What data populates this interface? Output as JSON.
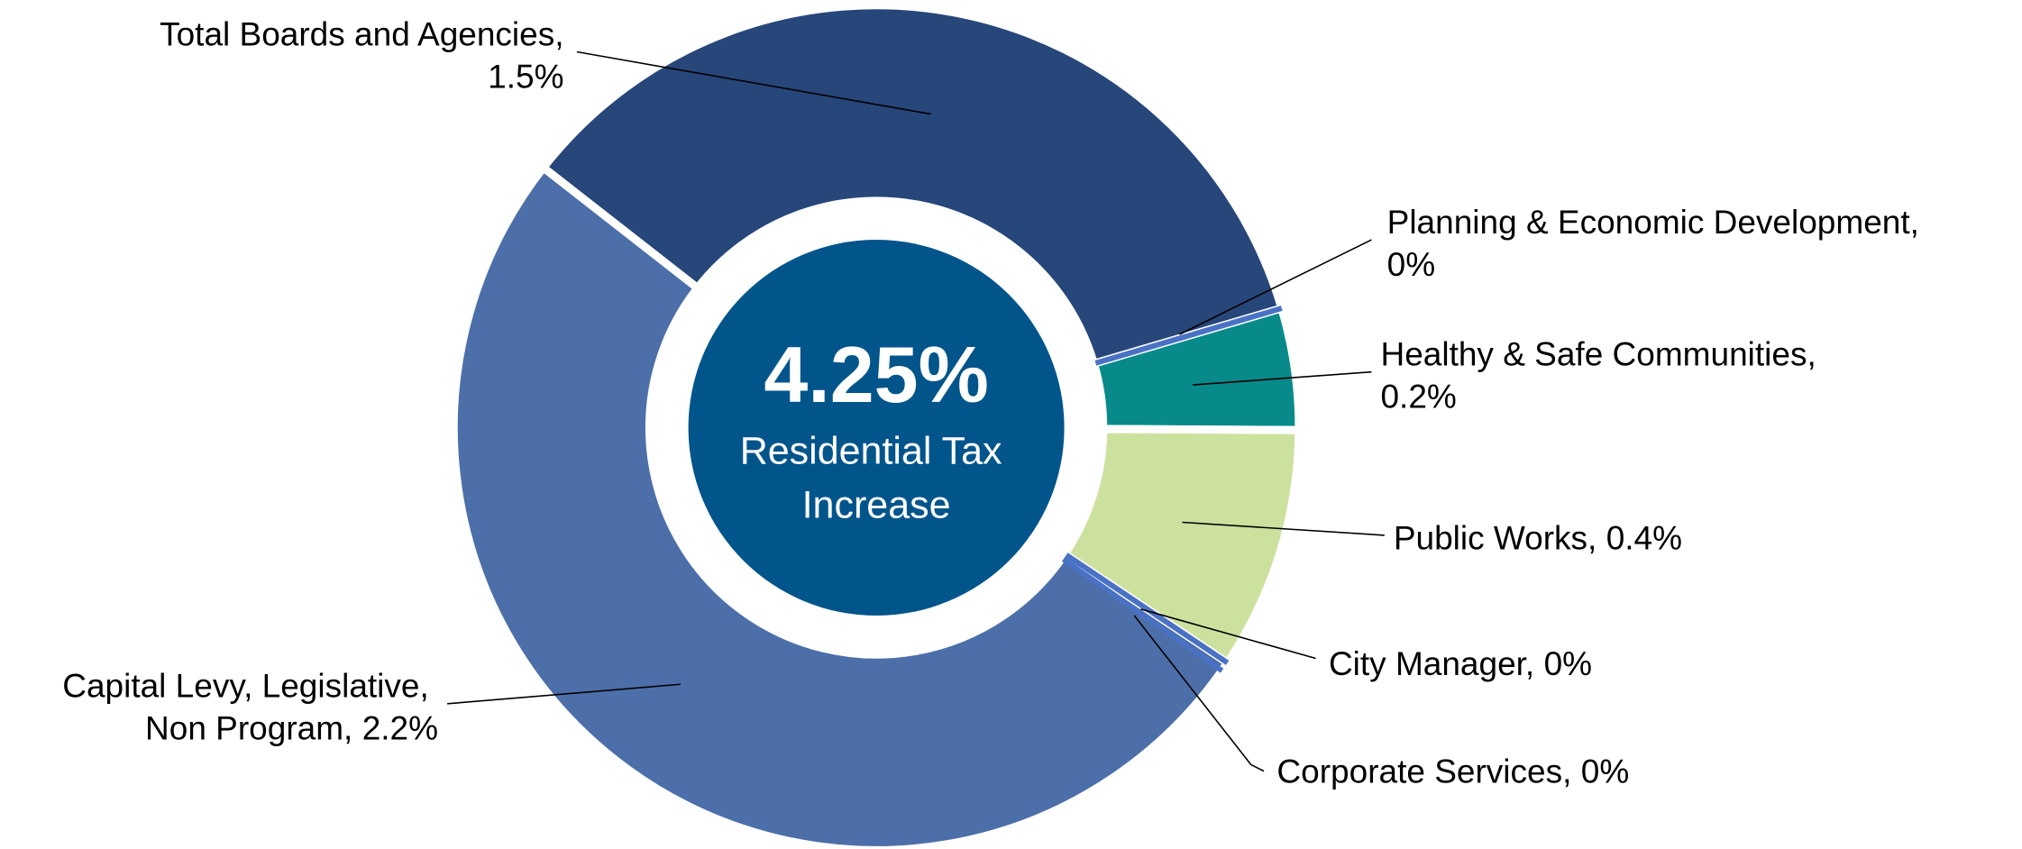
{
  "chart_data": {
    "type": "donut",
    "center_label": "4.25%",
    "center_text": "Residential Tax Increase",
    "categories": [
      "Total Boards and Agencies,",
      "Planning & Economic Development,",
      "Healthy & Safe Communities,",
      "Public Works,",
      "City Manager,",
      "Corporate Services,",
      "Capital Levy, Legislative, Non Program,"
    ],
    "values": [
      1.5,
      0,
      0.2,
      0.4,
      0,
      0,
      2.2
    ],
    "value_labels": [
      "1.5%",
      "0%",
      "0.2%",
      "0.4%",
      "0%",
      "0%",
      "2.2%"
    ],
    "colors": [
      "#27467a",
      "#4a72c4",
      "#088a8a",
      "#cde19f",
      "#4a72c4",
      "#4a72c4",
      "#4c6fa9"
    ],
    "center_color": "#02558b"
  }
}
